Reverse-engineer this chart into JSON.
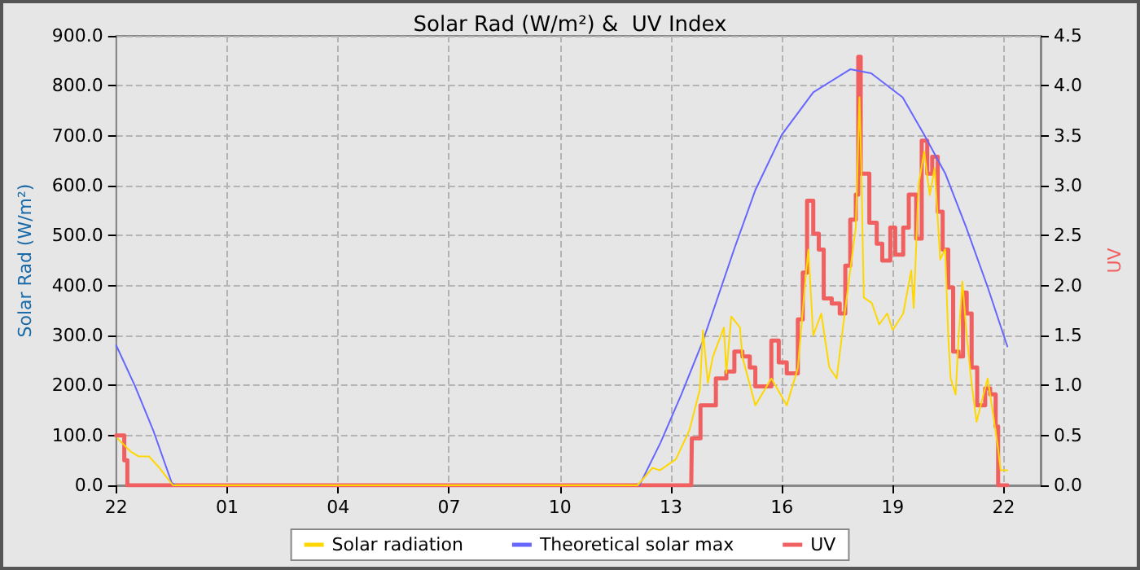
{
  "chart_data": {
    "type": "line",
    "title": "Solar Rad (W/m²) &  UV Index",
    "ylabel": "Solar Rad (W/m²)",
    "y2label": "UV",
    "xlim": [
      "--06-14T22:00",
      "--06-15T23:00"
    ],
    "xticks": [
      {
        "value": "--06-14T22:00",
        "label": "22"
      },
      {
        "value": "--06-15T01:00",
        "label": "01"
      },
      {
        "value": "--06-15T04:00",
        "label": "04"
      },
      {
        "value": "--06-15T07:00",
        "label": "07"
      },
      {
        "value": "--06-15T10:00",
        "label": "10"
      },
      {
        "value": "--06-15T13:00",
        "label": "13"
      },
      {
        "value": "--06-15T16:00",
        "label": "16"
      },
      {
        "value": "--06-15T19:00",
        "label": "19"
      },
      {
        "value": "--06-15T22:00",
        "label": "22"
      }
    ],
    "ylim": [
      0,
      900
    ],
    "yticks": [
      {
        "value": 0,
        "label": "0.0"
      },
      {
        "value": 100,
        "label": "100.0"
      },
      {
        "value": 200,
        "label": "200.0"
      },
      {
        "value": 300,
        "label": "300.0"
      },
      {
        "value": 400,
        "label": "400.0"
      },
      {
        "value": 500,
        "label": "500.0"
      },
      {
        "value": 600,
        "label": "600.0"
      },
      {
        "value": 700,
        "label": "700.0"
      },
      {
        "value": 800,
        "label": "800.0"
      },
      {
        "value": 900,
        "label": "900.0"
      }
    ],
    "y2lim": [
      0,
      4.5
    ],
    "y2ticks": [
      {
        "value": 0,
        "label": "0.0"
      },
      {
        "value": 0.5,
        "label": "0.5"
      },
      {
        "value": 1,
        "label": "1.0"
      },
      {
        "value": 1.5,
        "label": "1.5"
      },
      {
        "value": 2,
        "label": "2.0"
      },
      {
        "value": 2.5,
        "label": "2.5"
      },
      {
        "value": 3,
        "label": "3.0"
      },
      {
        "value": 3.5,
        "label": "3.5"
      },
      {
        "value": 4,
        "label": "4.0"
      },
      {
        "value": 4.5,
        "label": "4.5"
      }
    ],
    "grid": true,
    "legend": "bottom",
    "marker": "none",
    "line_style": "solid",
    "series": [
      {
        "name": "Solar radiation",
        "color": "#ffd700",
        "x": [
          "--06-14T22:02",
          "--06-14T22:23",
          "--06-14T22:36",
          "--06-14T22:53",
          "--06-14T23:10",
          "--06-14T23:32",
          "--06-15T12:06",
          "--06-15T12:30",
          "--06-15T12:42",
          "--06-15T13:08",
          "--06-15T13:30",
          "--06-15T13:47",
          "--06-15T13:52",
          "--06-15T14:00",
          "--06-15T14:08",
          "--06-15T14:26",
          "--06-15T14:30",
          "--06-15T14:38",
          "--06-15T14:52",
          "--06-15T14:56",
          "--06-15T15:17",
          "--06-15T15:43",
          "--06-15T16:08",
          "--06-15T16:26",
          "--06-15T16:38",
          "--06-15T16:43",
          "--06-15T16:51",
          "--06-15T17:04",
          "--06-15T17:17",
          "--06-15T17:29",
          "--06-15T17:42",
          "--06-15T18:00",
          "--06-15T18:06",
          "--06-15T18:09",
          "--06-15T18:13",
          "--06-15T18:26",
          "--06-15T18:38",
          "--06-15T18:51",
          "--06-15T19:00",
          "--06-15T19:17",
          "--06-15T19:30",
          "--06-15T19:34",
          "--06-15T19:42",
          "--06-15T19:51",
          "--06-15T20:00",
          "--06-15T20:08",
          "--06-15T20:17",
          "--06-15T20:25",
          "--06-15T20:30",
          "--06-15T20:34",
          "--06-15T20:42",
          "--06-15T20:47",
          "--06-15T20:53",
          "--06-15T21:00",
          "--06-15T21:08",
          "--06-15T21:16",
          "--06-15T21:34",
          "--06-15T21:42",
          "--06-15T21:51",
          "--06-15T21:55",
          "--06-15T22:06"
        ],
        "values": [
          94,
          68,
          58,
          58,
          35,
          0,
          0,
          35,
          30,
          52,
          110,
          192,
          310,
          205,
          257,
          316,
          225,
          338,
          316,
          257,
          160,
          214,
          160,
          235,
          408,
          472,
          300,
          344,
          236,
          214,
          344,
          517,
          777,
          635,
          376,
          365,
          322,
          344,
          311,
          344,
          430,
          355,
          603,
          668,
          581,
          635,
          452,
          473,
          300,
          214,
          182,
          300,
          408,
          300,
          203,
          127,
          214,
          150,
          73,
          30,
          30
        ]
      },
      {
        "name": "Theoretical solar max",
        "color": "#6666ff",
        "x": [
          "--06-14T22:00",
          "--06-14T22:30",
          "--06-14T23:00",
          "--06-14T23:30",
          "--06-14T23:36",
          "--06-15T12:09",
          "--06-15T12:43",
          "--06-15T13:17",
          "--06-15T13:52",
          "--06-15T14:43",
          "--06-15T15:17",
          "--06-15T16:00",
          "--06-15T16:51",
          "--06-15T17:51",
          "--06-15T18:25",
          "--06-15T19:16",
          "--06-15T19:51",
          "--06-15T20:25",
          "--06-15T20:59",
          "--06-15T21:34",
          "--06-15T22:06"
        ],
        "values": [
          280,
          200,
          110,
          5,
          0,
          0,
          85,
          182,
          289,
          474,
          591,
          702,
          787,
          833,
          825,
          777,
          702,
          625,
          517,
          397,
          278
        ]
      },
      {
        "name": "UV",
        "type": "step",
        "axis": "y2",
        "color": "#f06060",
        "x": [
          "--06-14T22:00",
          "--06-14T22:13",
          "--06-14T22:18",
          "--06-15T13:33",
          "--06-15T13:34",
          "--06-15T13:48",
          "--06-15T14:00",
          "--06-15T14:13",
          "--06-15T14:30",
          "--06-15T14:43",
          "--06-15T14:56",
          "--06-15T15:08",
          "--06-15T15:17",
          "--06-15T15:30",
          "--06-15T15:43",
          "--06-15T15:55",
          "--06-15T16:08",
          "--06-15T16:26",
          "--06-15T16:34",
          "--06-15T16:41",
          "--06-15T16:51",
          "--06-15T17:00",
          "--06-15T17:08",
          "--06-15T17:21",
          "--06-15T17:34",
          "--06-15T17:43",
          "--06-15T17:51",
          "--06-15T18:00",
          "--06-15T18:04",
          "--06-15T18:08",
          "--06-15T18:22",
          "--06-15T18:34",
          "--06-15T18:43",
          "--06-15T18:56",
          "--06-15T19:04",
          "--06-15T19:17",
          "--06-15T19:26",
          "--06-15T19:38",
          "--06-15T19:47",
          "--06-15T19:56",
          "--06-15T20:04",
          "--06-15T20:13",
          "--06-15T20:21",
          "--06-15T20:30",
          "--06-15T20:38",
          "--06-15T20:47",
          "--06-15T20:54",
          "--06-15T21:00",
          "--06-15T21:08",
          "--06-15T21:17",
          "--06-15T21:30",
          "--06-15T21:38",
          "--06-15T21:47",
          "--06-15T21:51",
          "--06-15T22:06"
        ],
        "values": [
          0.5,
          0.25,
          0,
          0,
          0.47,
          0.8,
          0.8,
          1.07,
          1.14,
          1.34,
          1.29,
          1.18,
          0.99,
          0.99,
          1.45,
          1.23,
          1.12,
          1.66,
          2.13,
          2.85,
          2.52,
          2.36,
          1.87,
          1.82,
          1.72,
          2.2,
          2.66,
          2.91,
          4.29,
          3.12,
          2.63,
          2.42,
          2.25,
          2.58,
          2.31,
          2.58,
          2.91,
          2.47,
          3.45,
          3.12,
          3.29,
          2.74,
          2.36,
          1.98,
          1.34,
          1.29,
          1.93,
          1.72,
          1.18,
          0.8,
          0.97,
          0.91,
          0.59,
          0,
          0
        ]
      }
    ]
  }
}
